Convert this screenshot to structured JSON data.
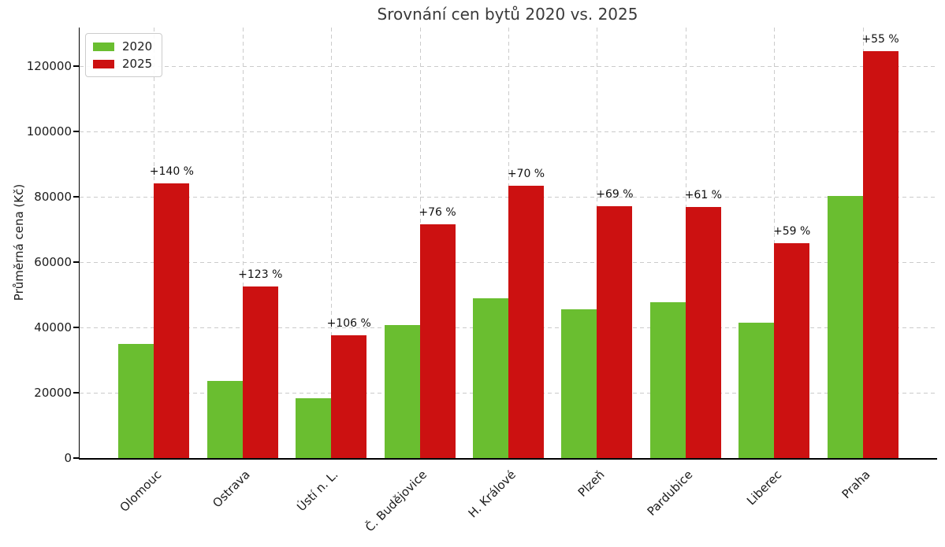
{
  "figure": {
    "title": "Srovnání cen bytů 2020 vs. 2025",
    "ylabel": "Průměrná cena (Kč)"
  },
  "chart_data": {
    "type": "bar",
    "title": "Srovnání cen bytů 2020 vs. 2025",
    "xlabel": "",
    "ylabel": "Průměrná cena (Kč)",
    "categories": [
      "Olomouc",
      "Ostrava",
      "Ústí n. L.",
      "Č. Budějovice",
      "H. Králové",
      "Plzeň",
      "Pardubice",
      "Liberec",
      "Praha"
    ],
    "series": [
      {
        "name": "2020",
        "color": "#6ABE30",
        "values": [
          35000,
          23600,
          18300,
          40700,
          49000,
          45600,
          47700,
          41400,
          80300
        ]
      },
      {
        "name": "2025",
        "color": "#CC1111",
        "values": [
          84000,
          52600,
          37700,
          71600,
          83300,
          77100,
          76800,
          65800,
          124500
        ]
      }
    ],
    "bar_labels": [
      "+140 %",
      "+123 %",
      "+106 %",
      "+76 %",
      "+70 %",
      "+69 %",
      "+61 %",
      "+59 %",
      "+55 %"
    ],
    "yticks": [
      0,
      20000,
      40000,
      60000,
      80000,
      100000,
      120000
    ],
    "ylim": [
      0,
      131800
    ],
    "grid": "dashed horizontal and vertical gridlines",
    "grid_color": "#cbcbcb",
    "legend_position": "upper-left",
    "xlabel_rotation_deg": 45
  }
}
